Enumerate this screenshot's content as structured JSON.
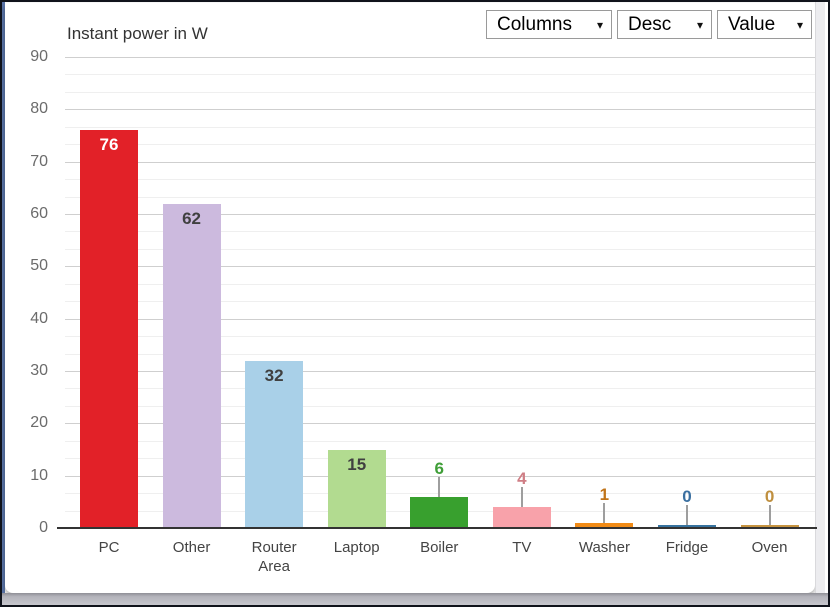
{
  "controls": {
    "chart_type": {
      "label": "Columns"
    },
    "sort_order": {
      "label": "Desc"
    },
    "sort_field": {
      "label": "Value"
    },
    "dropdown_arrow": "▾"
  },
  "chart_data": {
    "type": "bar",
    "title": "Instant power in W",
    "xlabel": "",
    "ylabel": "W",
    "ylim": [
      0,
      90
    ],
    "yticks": [
      0,
      10,
      20,
      30,
      40,
      50,
      60,
      70,
      80,
      90
    ],
    "grid": "major and minor horizontal gridlines, 2 minors per major",
    "legend": "none",
    "categories": [
      "PC",
      "Other",
      "Router Area",
      "Laptop",
      "Boiler",
      "TV",
      "Washer",
      "Fridge",
      "Oven"
    ],
    "values": [
      76,
      62,
      32,
      15,
      6,
      4,
      1,
      0,
      0
    ],
    "series": [
      {
        "category": "PC",
        "value": 76,
        "color": "#e22128",
        "label_color": "#ffffff",
        "annotation": "inside"
      },
      {
        "category": "Other",
        "value": 62,
        "color": "#ccbade",
        "label_color": "#404040",
        "annotation": "inside"
      },
      {
        "category": "Router Area",
        "value": 32,
        "color": "#a9d0e8",
        "label_color": "#404040",
        "annotation": "inside"
      },
      {
        "category": "Laptop",
        "value": 15,
        "color": "#b2db90",
        "label_color": "#404040",
        "annotation": "inside"
      },
      {
        "category": "Boiler",
        "value": 6,
        "color": "#38a02e",
        "label_color": "#3f9e38",
        "annotation": "outside"
      },
      {
        "category": "TV",
        "value": 4,
        "color": "#f8a2aa",
        "label_color": "#cf7e85",
        "annotation": "outside"
      },
      {
        "category": "Washer",
        "value": 1,
        "color": "#f18b16",
        "label_color": "#c0741a",
        "annotation": "outside"
      },
      {
        "category": "Fridge",
        "value": 0,
        "color": "#37739f",
        "label_color": "#3a6fa0",
        "annotation": "outside"
      },
      {
        "category": "Oven",
        "value": 0,
        "color": "#c79440",
        "label_color": "#bf8f3e",
        "annotation": "outside"
      }
    ],
    "colors": {
      "axis_text": "#6b6b6b",
      "category_text": "#444444",
      "major_gridline": "#cfcfcf",
      "minor_gridline": "#efefef",
      "baseline": "#333333",
      "stem": "#9e9e9e"
    }
  }
}
